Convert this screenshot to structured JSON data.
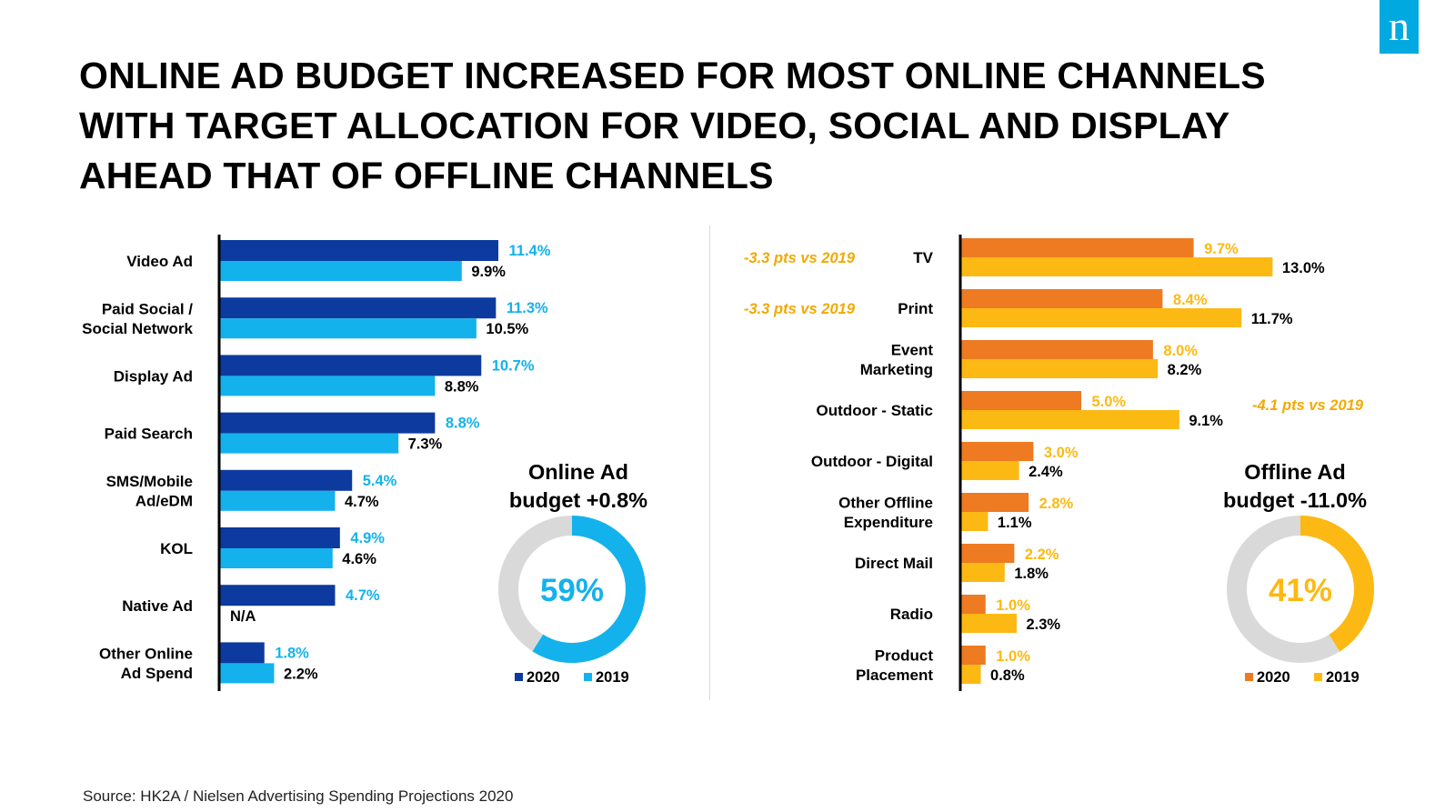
{
  "header": {
    "title": "ONLINE AD BUDGET INCREASED FOR MOST ONLINE CHANNELS WITH TARGET ALLOCATION FOR VIDEO, SOCIAL AND DISPLAY AHEAD THAT OF OFFLINE CHANNELS",
    "logo_text": "n"
  },
  "footer": {
    "source": "Source: HK2A / Nielsen Advertising Spending Projections 2020"
  },
  "colors": {
    "online_2020": "#0d3a9e",
    "online_2019": "#13b2ec",
    "offline_2020": "#ee7a21",
    "offline_2019": "#fdb913",
    "donut_remainder": "#d9d9d9",
    "offline_note": "#f2a900"
  },
  "chart_data": [
    {
      "type": "bar",
      "orientation": "horizontal",
      "categories": [
        [
          "Video Ad"
        ],
        [
          "Paid Social /",
          "Social Network"
        ],
        [
          "Display Ad"
        ],
        [
          "Paid Search"
        ],
        [
          "SMS/Mobile",
          "Ad/eDM"
        ],
        [
          "KOL"
        ],
        [
          "Native Ad"
        ],
        [
          "Other Online",
          "Ad Spend"
        ]
      ],
      "series": [
        {
          "name": "2020",
          "values": [
            11.4,
            11.3,
            10.7,
            8.8,
            5.4,
            4.9,
            4.7,
            1.8
          ],
          "labels": [
            "11.4%",
            "11.3%",
            "10.7%",
            "8.8%",
            "5.4%",
            "4.9%",
            "4.7%",
            "1.8%"
          ]
        },
        {
          "name": "2019",
          "values": [
            9.9,
            10.5,
            8.8,
            7.3,
            4.7,
            4.6,
            null,
            2.2
          ],
          "labels": [
            "9.9%",
            "10.5%",
            "8.8%",
            "7.3%",
            "4.7%",
            "4.6%",
            "N/A",
            "2.2%"
          ]
        }
      ],
      "summary": {
        "line1": "Online Ad",
        "line2": "budget +0.8%"
      },
      "donut": {
        "value": 59,
        "label": "59%"
      },
      "legend": [
        "2020",
        "2019"
      ],
      "notes": []
    },
    {
      "type": "bar",
      "orientation": "horizontal",
      "categories": [
        [
          "TV"
        ],
        [
          "Print"
        ],
        [
          "Event",
          "Marketing"
        ],
        [
          "Outdoor - Static"
        ],
        [
          "Outdoor - Digital"
        ],
        [
          "Other Offline",
          "Expenditure"
        ],
        [
          "Direct Mail"
        ],
        [
          "Radio"
        ],
        [
          "Product",
          "Placement"
        ]
      ],
      "series": [
        {
          "name": "2020",
          "values": [
            9.7,
            8.4,
            8.0,
            5.0,
            3.0,
            2.8,
            2.2,
            1.0,
            1.0
          ],
          "labels": [
            "9.7%",
            "8.4%",
            "8.0%",
            "5.0%",
            "3.0%",
            "2.8%",
            "2.2%",
            "1.0%",
            "1.0%"
          ]
        },
        {
          "name": "2019",
          "values": [
            13.0,
            11.7,
            8.2,
            9.1,
            2.4,
            1.1,
            1.8,
            2.3,
            0.8
          ],
          "labels": [
            "13.0%",
            "11.7%",
            "8.2%",
            "9.1%",
            "2.4%",
            "1.1%",
            "1.8%",
            "2.3%",
            "0.8%"
          ]
        }
      ],
      "summary": {
        "line1": "Offline Ad",
        "line2": "budget -11.0%"
      },
      "donut": {
        "value": 41,
        "label": "41%"
      },
      "legend": [
        "2020",
        "2019"
      ],
      "notes": [
        {
          "category": "TV",
          "text": "-3.3 pts vs 2019"
        },
        {
          "category": "Print",
          "text": "-3.3 pts vs 2019"
        },
        {
          "category": "Outdoor - Static",
          "text": "-4.1 pts vs 2019"
        }
      ]
    }
  ]
}
